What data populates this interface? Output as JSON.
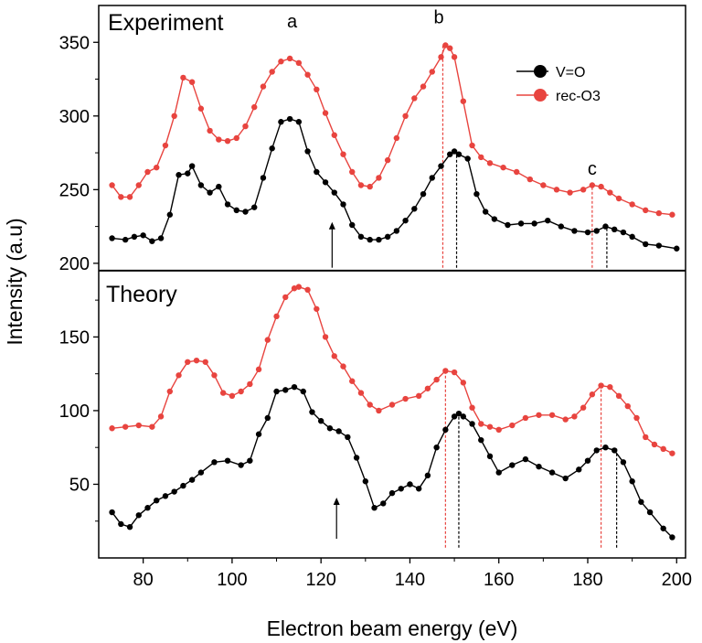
{
  "chart_data": {
    "type": "line",
    "xlabel": "Electron beam energy (eV)",
    "ylabel": "Intensity (a.u)",
    "xlim": [
      70,
      202
    ],
    "ylim": [
      0,
      375
    ],
    "x_ticks": [
      80,
      100,
      120,
      140,
      160,
      180,
      200
    ],
    "y_ticks": [
      50,
      100,
      150,
      200,
      250,
      300,
      350
    ],
    "x_tick_labels": [
      "80",
      "100",
      "120",
      "140",
      "160",
      "180",
      "200"
    ],
    "y_tick_labels": [
      "50",
      "100",
      "150",
      "200",
      "250",
      "300",
      "350"
    ],
    "divider_y": 195,
    "panels": [
      {
        "label": "Experiment",
        "position": "top"
      },
      {
        "label": "Theory",
        "position": "bottom"
      }
    ],
    "legend": {
      "placement": "top-right",
      "entries": [
        {
          "name": "V=O",
          "color": "#000000"
        },
        {
          "name": "rec-O3",
          "color": "#e8443f"
        }
      ]
    },
    "peak_labels": [
      {
        "text": "a",
        "x": 113.5,
        "y": 360
      },
      {
        "text": "b",
        "x": 146.5,
        "y": 363
      },
      {
        "text": "c",
        "x": 181,
        "y": 260
      }
    ],
    "arrows": [
      {
        "x": 122.5,
        "y_from": 197,
        "y_to": 228
      },
      {
        "x": 123.5,
        "y_from": 13,
        "y_to": 41
      }
    ],
    "ref_lines": [
      {
        "x": 147.4,
        "y_from": 197,
        "y_to": 348,
        "color": "#e8443f"
      },
      {
        "x": 150.5,
        "y_from": 197,
        "y_to": 275,
        "color": "#000000"
      },
      {
        "x": 181,
        "y_from": 197,
        "y_to": 252,
        "color": "#e8443f"
      },
      {
        "x": 184.3,
        "y_from": 197,
        "y_to": 225,
        "color": "#000000"
      },
      {
        "x": 148,
        "y_from": 7,
        "y_to": 127,
        "color": "#e8443f"
      },
      {
        "x": 151,
        "y_from": 7,
        "y_to": 97,
        "color": "#000000"
      },
      {
        "x": 183,
        "y_from": 7,
        "y_to": 115,
        "color": "#e8443f"
      },
      {
        "x": 186.5,
        "y_from": 7,
        "y_to": 74,
        "color": "#000000"
      }
    ],
    "series": [
      {
        "name": "V=O",
        "panel": "Experiment",
        "color": "#000000",
        "x": [
          73,
          76,
          78,
          80,
          82,
          84,
          86,
          88,
          90,
          91,
          93,
          95,
          97,
          99,
          101,
          103,
          105,
          107,
          109,
          111,
          113,
          115,
          117,
          119,
          121,
          123,
          125,
          127,
          129,
          131,
          133,
          135,
          137,
          139,
          141,
          143,
          145,
          147,
          149,
          150,
          151,
          153,
          155,
          157,
          159,
          162,
          165,
          168,
          171,
          174,
          177,
          180,
          182,
          184,
          186,
          188,
          190,
          193,
          196,
          200
        ],
        "y": [
          217,
          216,
          218,
          219,
          215,
          217,
          233,
          260,
          261,
          266,
          253,
          248,
          252,
          240,
          236,
          235,
          238,
          258,
          278,
          296,
          298,
          296,
          276,
          262,
          255,
          248,
          240,
          226,
          218,
          216,
          216,
          218,
          222,
          229,
          237,
          247,
          258,
          266,
          274,
          276,
          274,
          271,
          247,
          235,
          230,
          226,
          227,
          227,
          229,
          225,
          222,
          221,
          222,
          225,
          223,
          221,
          218,
          213,
          212,
          210
        ]
      },
      {
        "name": "rec-O3",
        "panel": "Experiment",
        "color": "#e8443f",
        "x": [
          73,
          75,
          77,
          79,
          81,
          83,
          85,
          87,
          89,
          91,
          93,
          95,
          97,
          99,
          101,
          103,
          105,
          107,
          109,
          111,
          113,
          115,
          117,
          119,
          121,
          123,
          125,
          127,
          129,
          131,
          133,
          135,
          137,
          139,
          141,
          143,
          145,
          147,
          148,
          149,
          150,
          152,
          154,
          156,
          158,
          161,
          164,
          167,
          170,
          173,
          176,
          179,
          181,
          183,
          185,
          187,
          190,
          193,
          196,
          199
        ],
        "y": [
          253,
          245,
          245,
          253,
          262,
          265,
          280,
          300,
          326,
          323,
          305,
          290,
          284,
          283,
          285,
          293,
          306,
          320,
          330,
          337,
          339,
          336,
          328,
          318,
          302,
          287,
          274,
          262,
          253,
          252,
          258,
          270,
          285,
          300,
          312,
          320,
          330,
          340,
          348,
          346,
          340,
          310,
          280,
          272,
          268,
          265,
          262,
          257,
          253,
          250,
          248,
          250,
          253,
          252,
          248,
          244,
          240,
          236,
          234,
          233
        ]
      },
      {
        "name": "V=O",
        "panel": "Theory",
        "color": "#000000",
        "x": [
          73,
          75,
          77,
          79,
          81,
          83,
          85,
          87,
          89,
          91,
          93,
          96,
          99,
          102,
          104,
          106,
          108,
          110,
          112,
          114,
          116,
          118,
          120,
          122,
          124,
          126,
          128,
          130,
          132,
          134,
          136,
          138,
          140,
          142,
          144,
          146,
          148,
          150,
          151,
          152,
          154,
          156,
          158,
          160,
          163,
          166,
          169,
          172,
          175,
          178,
          180,
          182,
          184,
          186,
          188,
          190,
          192,
          194,
          197,
          199
        ],
        "y": [
          31,
          23,
          21,
          29,
          34,
          39,
          42,
          45,
          49,
          53,
          58,
          65,
          66,
          63,
          66,
          84,
          95,
          113,
          114,
          116,
          113,
          99,
          93,
          88,
          86,
          82,
          68,
          52,
          34,
          37,
          44,
          47,
          50,
          47,
          56,
          75,
          87,
          96,
          98,
          96,
          91,
          80,
          69,
          58,
          63,
          67,
          62,
          58,
          54,
          60,
          66,
          73,
          75,
          73,
          65,
          52,
          38,
          31,
          20,
          14
        ]
      },
      {
        "name": "rec-O3",
        "panel": "Theory",
        "color": "#e8443f",
        "x": [
          73,
          76,
          79,
          82,
          84,
          86,
          88,
          90,
          92,
          94,
          96,
          98,
          100,
          102,
          104,
          106,
          108,
          110,
          112,
          114,
          115,
          117,
          119,
          121,
          123,
          125,
          127,
          129,
          131,
          133,
          136,
          139,
          142,
          144,
          146,
          148,
          150,
          152,
          154,
          156,
          158,
          160,
          163,
          166,
          169,
          172,
          175,
          177,
          179,
          181,
          183,
          185,
          187,
          189,
          191,
          193,
          195,
          197,
          199
        ],
        "y": [
          88,
          89,
          90,
          89,
          96,
          113,
          124,
          133,
          134,
          133,
          124,
          112,
          110,
          113,
          118,
          128,
          148,
          164,
          177,
          183,
          184,
          182,
          169,
          150,
          137,
          130,
          120,
          112,
          104,
          100,
          104,
          108,
          110,
          115,
          121,
          127,
          126,
          119,
          102,
          91,
          89,
          87,
          90,
          95,
          97,
          97,
          94,
          96,
          102,
          111,
          117,
          116,
          110,
          103,
          95,
          82,
          77,
          74,
          71
        ]
      }
    ]
  }
}
